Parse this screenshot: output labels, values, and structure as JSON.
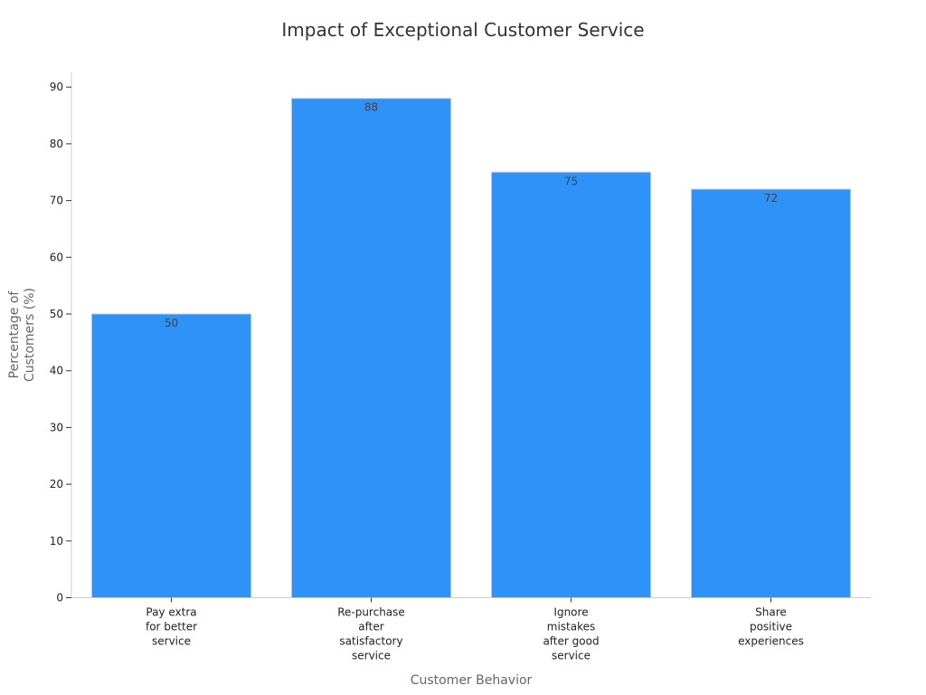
{
  "chart_data": {
    "type": "bar",
    "title": "Impact of Exceptional Customer Service",
    "xlabel": "Customer Behavior",
    "ylabel": "Percentage of Customers (%)",
    "ylabel_lines": [
      "Percentage of",
      "Customers (%)"
    ],
    "categories": [
      "Pay extra for better service",
      "Re-purchase after satisfactory service",
      "Ignore mistakes after good service",
      "Share positive experiences"
    ],
    "category_lines": [
      [
        "Pay extra",
        "for better",
        "service"
      ],
      [
        "Re-purchase",
        "after",
        "satisfactory",
        "service"
      ],
      [
        "Ignore",
        "mistakes",
        "after good",
        "service"
      ],
      [
        "Share",
        "positive",
        "experiences"
      ]
    ],
    "values": [
      50,
      88,
      75,
      72
    ],
    "data_labels": [
      "50",
      "88",
      "75",
      "72"
    ],
    "ylim": [
      0,
      92
    ],
    "yticks": [
      0,
      10,
      20,
      30,
      40,
      50,
      60,
      70,
      80,
      90
    ],
    "grid": false,
    "legend": "none",
    "colors": {
      "bar": "#2e92f8",
      "bar_edge": "#a9cdfb",
      "axis": "#cccccc",
      "text": "#222222"
    }
  }
}
